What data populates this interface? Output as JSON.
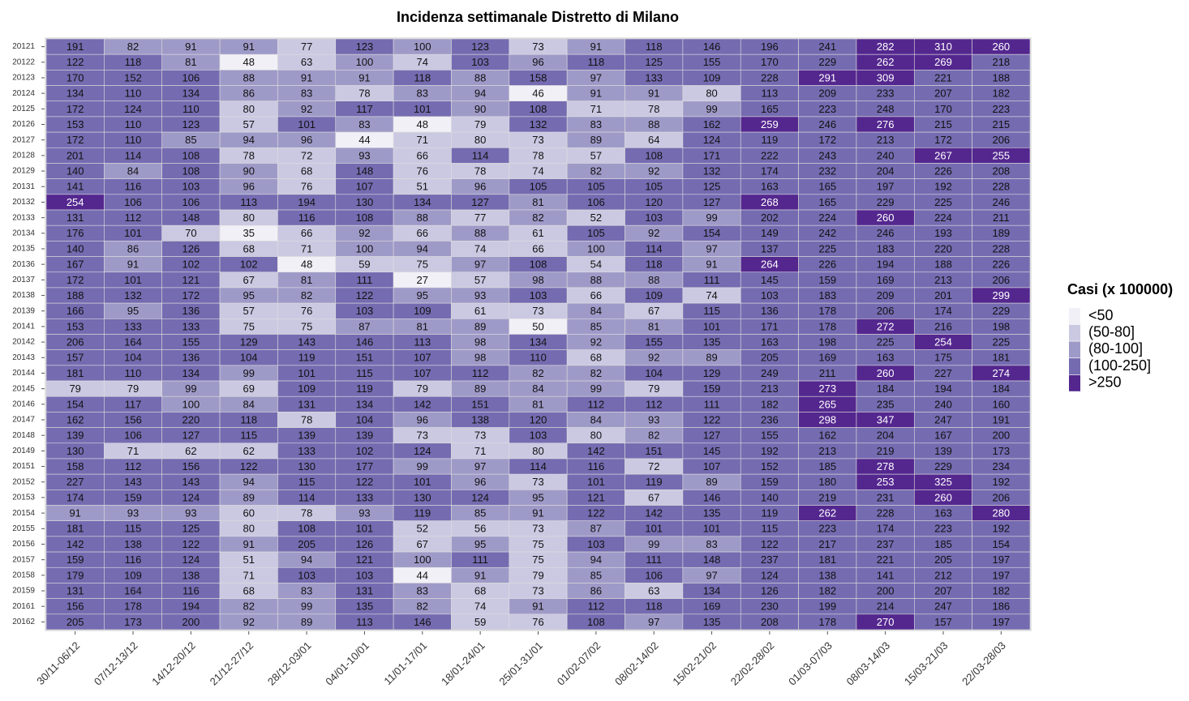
{
  "chart_data": {
    "type": "heatmap",
    "title": "Incidenza settimanale Distretto di Milano",
    "x": [
      "30/11-06/12",
      "07/12-13/12",
      "14/12-20/12",
      "21/12-27/12",
      "28/12-03/01",
      "04/01-10/01",
      "11/01-17/01",
      "18/01-24/01",
      "25/01-31/01",
      "01/02-07/02",
      "08/02-14/02",
      "15/02-21/02",
      "22/02-28/02",
      "01/03-07/03",
      "08/03-14/03",
      "15/03-21/03",
      "22/03-28/03"
    ],
    "y": [
      "20121",
      "20122",
      "20123",
      "20124",
      "20125",
      "20126",
      "20127",
      "20128",
      "20129",
      "20131",
      "20132",
      "20133",
      "20134",
      "20135",
      "20136",
      "20137",
      "20138",
      "20139",
      "20141",
      "20142",
      "20143",
      "20144",
      "20145",
      "20146",
      "20147",
      "20148",
      "20149",
      "20151",
      "20152",
      "20153",
      "20154",
      "20155",
      "20156",
      "20157",
      "20158",
      "20159",
      "20161",
      "20162"
    ],
    "values": [
      [
        191,
        82,
        91,
        91,
        77,
        123,
        100,
        123,
        73,
        91,
        118,
        146,
        196,
        241,
        282,
        310,
        260
      ],
      [
        122,
        118,
        81,
        48,
        63,
        100,
        74,
        103,
        96,
        118,
        125,
        155,
        170,
        229,
        262,
        269,
        218
      ],
      [
        170,
        152,
        106,
        88,
        91,
        91,
        118,
        88,
        158,
        97,
        133,
        109,
        228,
        291,
        309,
        221,
        188
      ],
      [
        134,
        110,
        134,
        86,
        83,
        78,
        83,
        94,
        46,
        91,
        91,
        80,
        113,
        209,
        233,
        207,
        182
      ],
      [
        172,
        124,
        110,
        80,
        92,
        117,
        101,
        90,
        108,
        71,
        78,
        99,
        165,
        223,
        248,
        170,
        223
      ],
      [
        153,
        110,
        123,
        57,
        101,
        83,
        48,
        79,
        132,
        83,
        88,
        162,
        259,
        246,
        276,
        215,
        215
      ],
      [
        172,
        110,
        85,
        94,
        96,
        44,
        71,
        80,
        73,
        89,
        64,
        124,
        119,
        172,
        213,
        172,
        206
      ],
      [
        201,
        114,
        108,
        78,
        72,
        93,
        66,
        114,
        78,
        57,
        108,
        171,
        222,
        243,
        240,
        267,
        255
      ],
      [
        140,
        84,
        108,
        90,
        68,
        148,
        76,
        78,
        74,
        82,
        92,
        132,
        174,
        232,
        204,
        226,
        208
      ],
      [
        141,
        116,
        103,
        96,
        76,
        107,
        51,
        96,
        105,
        105,
        105,
        125,
        163,
        165,
        197,
        192,
        228
      ],
      [
        254,
        106,
        106,
        113,
        194,
        130,
        134,
        127,
        81,
        106,
        120,
        127,
        268,
        165,
        229,
        225,
        246
      ],
      [
        131,
        112,
        148,
        80,
        116,
        108,
        88,
        77,
        82,
        52,
        103,
        99,
        202,
        224,
        260,
        224,
        211
      ],
      [
        176,
        101,
        70,
        35,
        66,
        92,
        66,
        88,
        61,
        105,
        92,
        154,
        149,
        242,
        246,
        193,
        189
      ],
      [
        140,
        86,
        126,
        68,
        71,
        100,
        94,
        74,
        66,
        100,
        114,
        97,
        137,
        225,
        183,
        220,
        228
      ],
      [
        167,
        91,
        102,
        102,
        48,
        59,
        75,
        97,
        108,
        54,
        118,
        91,
        264,
        226,
        194,
        188,
        226
      ],
      [
        172,
        101,
        121,
        67,
        81,
        111,
        27,
        57,
        98,
        88,
        88,
        111,
        145,
        159,
        169,
        213,
        206
      ],
      [
        188,
        132,
        172,
        95,
        82,
        122,
        95,
        93,
        103,
        66,
        109,
        74,
        103,
        183,
        209,
        201,
        299
      ],
      [
        166,
        95,
        136,
        57,
        76,
        103,
        109,
        61,
        73,
        84,
        67,
        115,
        136,
        178,
        206,
        174,
        229
      ],
      [
        153,
        133,
        133,
        75,
        75,
        87,
        81,
        89,
        50,
        85,
        81,
        101,
        171,
        178,
        272,
        216,
        198
      ],
      [
        206,
        164,
        155,
        129,
        143,
        146,
        113,
        98,
        134,
        92,
        155,
        135,
        163,
        198,
        225,
        254,
        225
      ],
      [
        157,
        104,
        136,
        104,
        119,
        151,
        107,
        98,
        110,
        68,
        92,
        89,
        205,
        169,
        163,
        175,
        181
      ],
      [
        181,
        110,
        134,
        99,
        101,
        115,
        107,
        112,
        82,
        82,
        104,
        129,
        249,
        211,
        260,
        227,
        274
      ],
      [
        79,
        79,
        99,
        69,
        109,
        119,
        79,
        89,
        84,
        99,
        79,
        159,
        213,
        273,
        184,
        194,
        184
      ],
      [
        154,
        117,
        100,
        84,
        131,
        134,
        142,
        151,
        81,
        112,
        112,
        111,
        182,
        265,
        235,
        240,
        160
      ],
      [
        162,
        156,
        220,
        118,
        78,
        104,
        96,
        138,
        120,
        84,
        93,
        122,
        236,
        298,
        347,
        247,
        191
      ],
      [
        139,
        106,
        127,
        115,
        139,
        139,
        73,
        73,
        103,
        80,
        82,
        127,
        155,
        162,
        204,
        167,
        200
      ],
      [
        130,
        71,
        62,
        62,
        133,
        102,
        124,
        71,
        80,
        142,
        151,
        145,
        192,
        213,
        219,
        139,
        173
      ],
      [
        158,
        112,
        156,
        122,
        130,
        177,
        99,
        97,
        114,
        116,
        72,
        107,
        152,
        185,
        278,
        229,
        234
      ],
      [
        227,
        143,
        143,
        94,
        115,
        122,
        101,
        96,
        73,
        101,
        119,
        89,
        159,
        180,
        253,
        325,
        192
      ],
      [
        174,
        159,
        124,
        89,
        114,
        133,
        130,
        124,
        95,
        121,
        67,
        146,
        140,
        219,
        231,
        260,
        206
      ],
      [
        91,
        93,
        93,
        60,
        78,
        93,
        119,
        85,
        91,
        122,
        142,
        135,
        119,
        262,
        228,
        163,
        280
      ],
      [
        181,
        115,
        125,
        80,
        108,
        101,
        52,
        56,
        73,
        87,
        101,
        101,
        115,
        223,
        174,
        223,
        192
      ],
      [
        142,
        138,
        122,
        91,
        205,
        126,
        67,
        95,
        75,
        103,
        99,
        83,
        122,
        217,
        237,
        185,
        154
      ],
      [
        159,
        116,
        124,
        51,
        94,
        121,
        100,
        111,
        75,
        94,
        111,
        148,
        237,
        181,
        221,
        205,
        197
      ],
      [
        179,
        109,
        138,
        71,
        103,
        103,
        44,
        91,
        79,
        85,
        106,
        97,
        124,
        138,
        141,
        212,
        197
      ],
      [
        131,
        164,
        116,
        68,
        83,
        131,
        83,
        68,
        73,
        86,
        63,
        134,
        126,
        182,
        200,
        207,
        182
      ],
      [
        156,
        178,
        194,
        82,
        99,
        135,
        82,
        74,
        91,
        112,
        118,
        169,
        230,
        199,
        214,
        247,
        186
      ],
      [
        205,
        173,
        200,
        92,
        89,
        113,
        146,
        59,
        76,
        108,
        97,
        135,
        208,
        178,
        270,
        157,
        197
      ]
    ],
    "legend": {
      "title": "Casi (x 100000)",
      "items": [
        {
          "label": "<50",
          "color": "#f2f0f7",
          "max": 50
        },
        {
          "label": "(50-80]",
          "color": "#cbc9e2",
          "max": 80
        },
        {
          "label": "(80-100]",
          "color": "#9e9ac8",
          "max": 100
        },
        {
          "label": "(100-250]",
          "color": "#756bb1",
          "max": 250
        },
        {
          "label": ">250",
          "color": "#54278f",
          "max": null
        }
      ]
    }
  }
}
